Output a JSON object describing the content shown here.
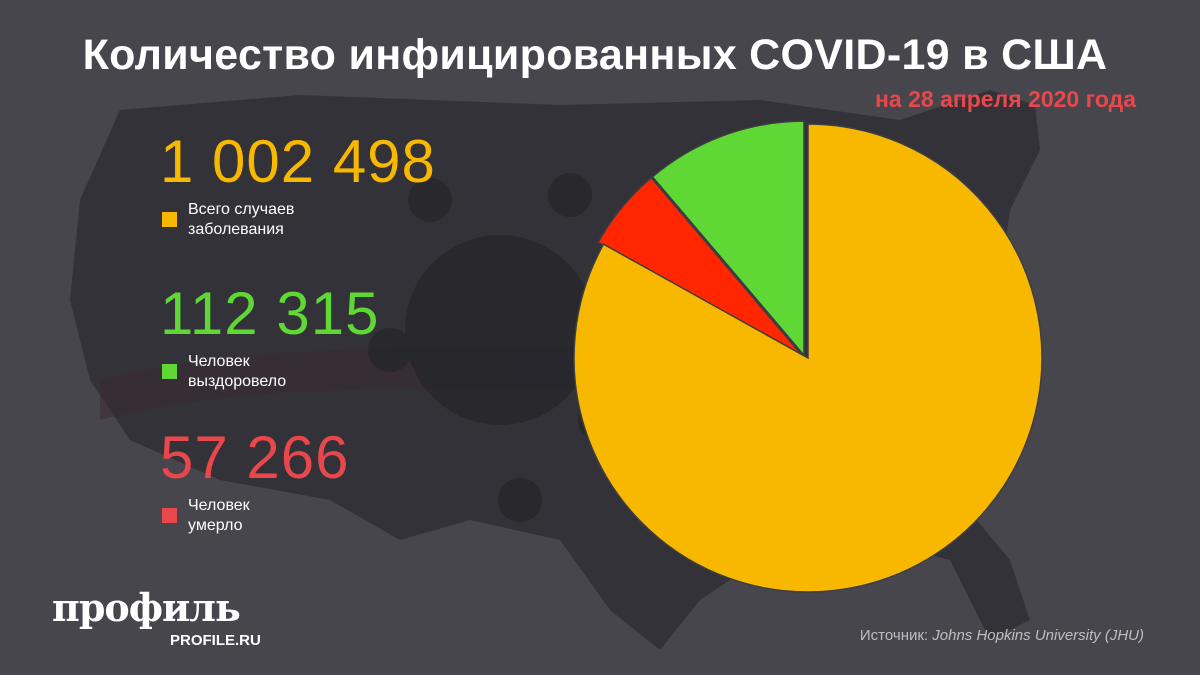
{
  "title": "Количество инфицированных COVID-19 в США",
  "subtitle": "на 28 апреля 2020 года",
  "stats": [
    {
      "value": "1 002 498",
      "label_line1": "Всего случаев",
      "label_line2": "заболевания",
      "color": "#f8b800"
    },
    {
      "value": "112 315",
      "label_line1": "Человек",
      "label_line2": "выздоровело",
      "color": "#5fd836"
    },
    {
      "value": "57 266",
      "label_line1": "Человек",
      "label_line2": "умерло",
      "color": "#e8474c"
    }
  ],
  "logo": {
    "name": "профиль",
    "site": "PROFILE.RU"
  },
  "source": {
    "prefix": "Источник:",
    "name": "Johns Hopkins University (JHU)"
  },
  "chart_data": {
    "type": "pie",
    "total": 1002498,
    "slices": [
      {
        "label": "Человек выздоровело",
        "value": 112315,
        "color": "#5fd836"
      },
      {
        "label": "Человек умерло",
        "value": 57266,
        "color": "#ff2600"
      },
      {
        "label": "Всего случаев заболевания (остальные)",
        "value_from": "total",
        "color": "#f8b800"
      }
    ],
    "start": "top",
    "direction": "counterclockwise",
    "exploded": [
      "Человек выздоровело",
      "Человек умерло"
    ]
  }
}
